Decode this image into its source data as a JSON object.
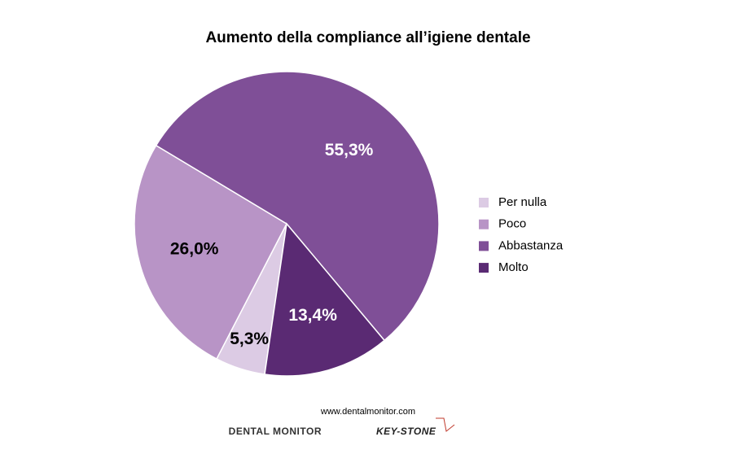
{
  "chart_data": {
    "type": "pie",
    "title": "Aumento della compliance all’igiene dentale",
    "categories": [
      "Per nulla",
      "Poco",
      "Abbastanza",
      "Molto"
    ],
    "values": [
      5.3,
      26.0,
      55.3,
      13.4
    ],
    "value_labels": [
      "5,3%",
      "26,0%",
      "55,3%",
      "13,4%"
    ],
    "colors": [
      "#dccbe4",
      "#b894c6",
      "#7f4f97",
      "#5a2a73"
    ],
    "legend": "right"
  },
  "footer": {
    "url": "www.dentalmonitor.com",
    "logo_left": "DENTAL MONITOR",
    "logo_right": "KEY-STONE"
  }
}
